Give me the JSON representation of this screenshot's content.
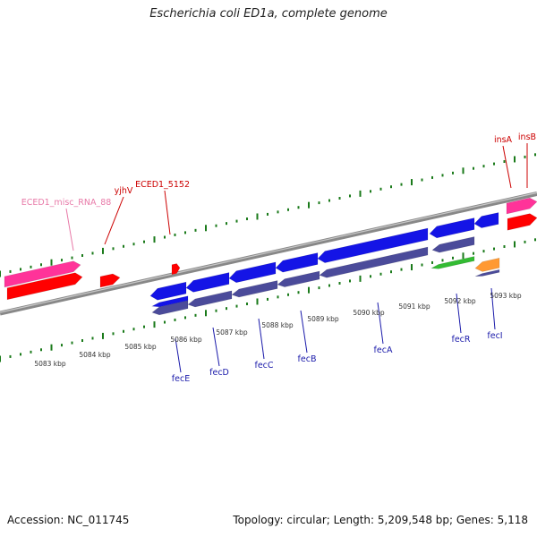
{
  "title": "Escherichia coli ED1a, complete genome",
  "footer": {
    "accession": "Accession: NC_011745",
    "summary": "Topology: circular; Length: 5,209,548 bp; Genes: 5,118"
  },
  "colors": {
    "backbone": "#888888",
    "tick": "#1a7a1a",
    "scale_label": "#333333",
    "forward_label": "#cc0000",
    "misc_rna_label": "#e87aa8",
    "reverse_label": "#1a1aaa",
    "gene_forward": "#ff0000",
    "misc_rna": "#ff3399",
    "gene_reverse": "#1414e6",
    "gene_reverse_shadow": "#4b4b9a",
    "gene_green": "#33bb33",
    "gene_orange": "#ff9933"
  },
  "scale": {
    "labels": [
      "5083 kbp",
      "5084 kbp",
      "5085 kbp",
      "5086 kbp",
      "5087 kbp",
      "5088 kbp",
      "5089 kbp",
      "5090 kbp",
      "5091 kbp",
      "5092 kbp",
      "5093 kbp"
    ]
  },
  "labels_forward": [
    {
      "text": "ECED1_misc_RNA_88",
      "kind": "misc_rna"
    },
    {
      "text": "yjhV",
      "kind": "gene"
    },
    {
      "text": "ECED1_5152",
      "kind": "gene"
    },
    {
      "text": "insA",
      "kind": "gene"
    },
    {
      "text": "insB",
      "kind": "gene"
    }
  ],
  "labels_reverse": [
    "fecE",
    "fecD",
    "fecC",
    "fecB",
    "fecA",
    "fecR",
    "fecI"
  ]
}
